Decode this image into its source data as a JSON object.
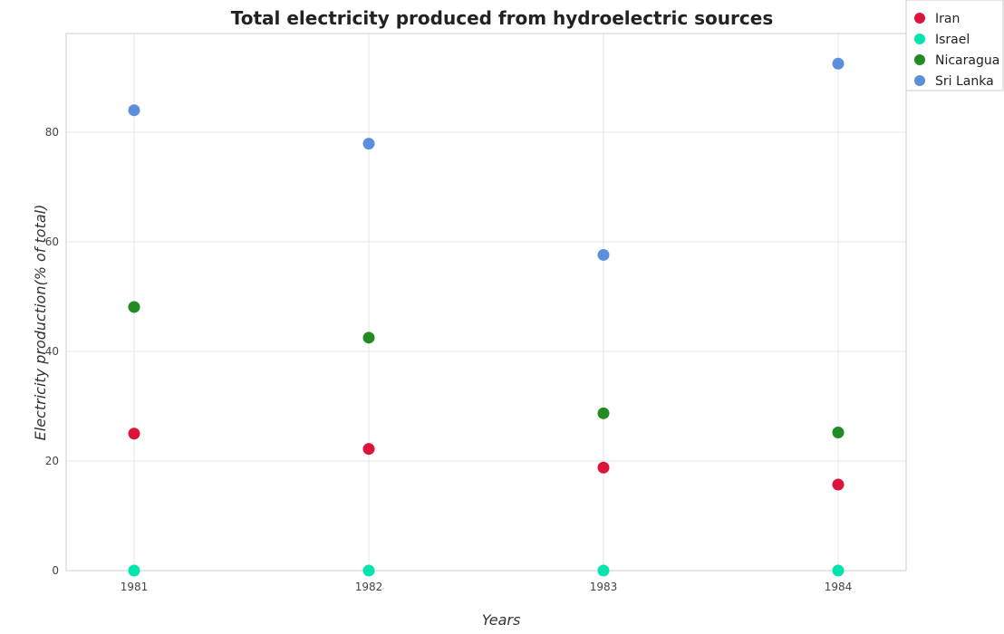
{
  "chart_data": {
    "type": "scatter",
    "title": "Total electricity produced from hydroelectric sources",
    "xlabel": "Years",
    "ylabel": "Electricity production(% of total)",
    "categories": [
      "1981",
      "1982",
      "1983",
      "1984"
    ],
    "ylim": [
      0,
      98
    ],
    "yticks": [
      0,
      20,
      40,
      60,
      80
    ],
    "grid": true,
    "legend_position": "top-right",
    "series": [
      {
        "name": "Iran",
        "color": "#dc143c",
        "values": [
          25.0,
          22.2,
          18.8,
          15.7
        ]
      },
      {
        "name": "Israel",
        "color": "#00e5b0",
        "values": [
          0.0,
          0.0,
          0.0,
          0.0
        ]
      },
      {
        "name": "Nicaragua",
        "color": "#228b22",
        "values": [
          48.1,
          42.5,
          28.7,
          25.2
        ]
      },
      {
        "name": "Sri Lanka",
        "color": "#5b8fdc",
        "values": [
          84.0,
          77.9,
          57.6,
          92.5
        ]
      }
    ]
  }
}
